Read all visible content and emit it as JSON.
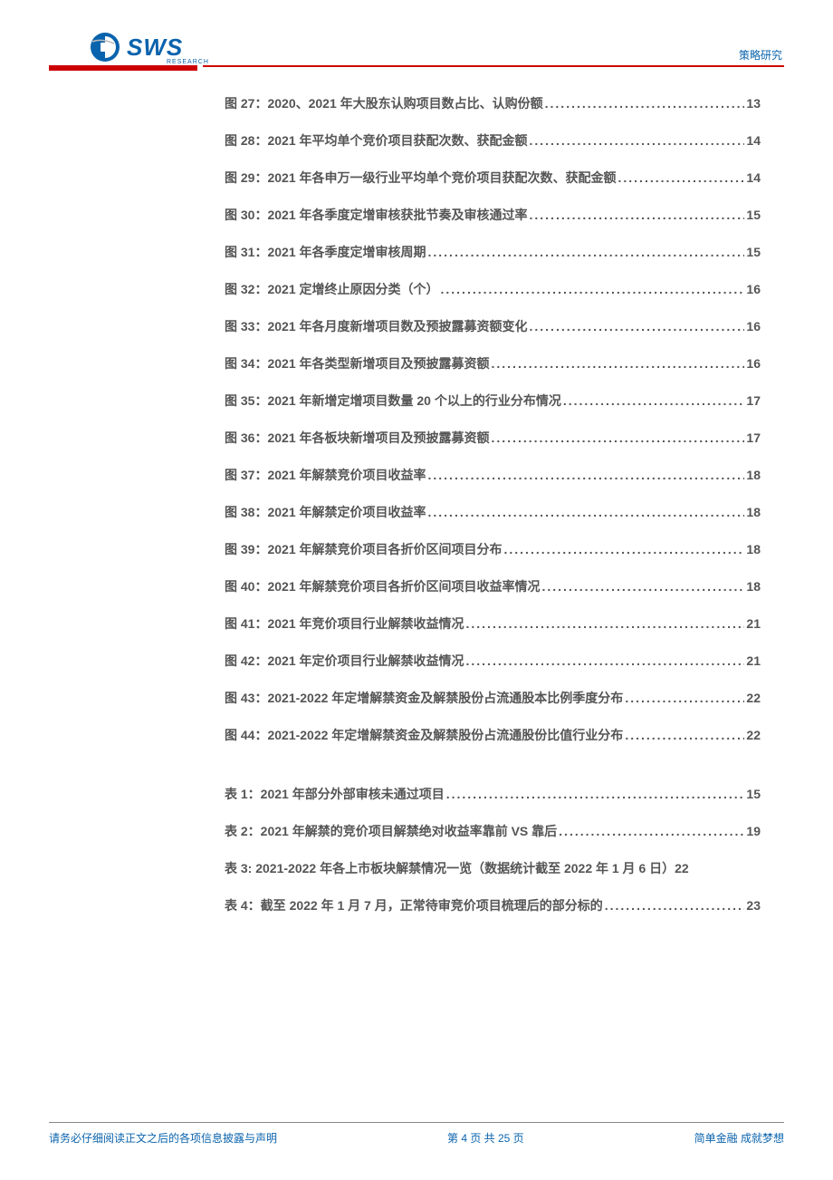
{
  "header": {
    "logo_text": "SWS",
    "logo_sub": "RESEARCH",
    "category": "策略研究"
  },
  "colors": {
    "red": "#cc0000",
    "blue": "#0a63ad",
    "text": "#555555"
  },
  "figures": [
    {
      "label": "图 27：2020、2021 年大股东认购项目数占比、认购份额",
      "page": "13"
    },
    {
      "label": "图 28：2021 年平均单个竞价项目获配次数、获配金额",
      "page": "14"
    },
    {
      "label": "图 29：2021 年各申万一级行业平均单个竞价项目获配次数、获配金额",
      "page": "14"
    },
    {
      "label": "图 30：2021 年各季度定增审核获批节奏及审核通过率",
      "page": "15"
    },
    {
      "label": "图 31：2021 年各季度定增审核周期",
      "page": "15"
    },
    {
      "label": "图 32：2021 定增终止原因分类（个）",
      "page": "16"
    },
    {
      "label": "图 33：2021 年各月度新增项目数及预披露募资额变化",
      "page": "16"
    },
    {
      "label": "图 34：2021 年各类型新增项目及预披露募资额",
      "page": "16"
    },
    {
      "label": "图 35：2021 年新增定增项目数量 20 个以上的行业分布情况",
      "page": "17"
    },
    {
      "label": "图 36：2021 年各板块新增项目及预披露募资额",
      "page": "17"
    },
    {
      "label": "图 37：2021 年解禁竞价项目收益率",
      "page": "18"
    },
    {
      "label": "图 38：2021 年解禁定价项目收益率",
      "page": "18"
    },
    {
      "label": "图 39：2021 年解禁竞价项目各折价区间项目分布",
      "page": "18"
    },
    {
      "label": "图 40：2021 年解禁竞价项目各折价区间项目收益率情况",
      "page": "18"
    },
    {
      "label": "图 41：2021 年竞价项目行业解禁收益情况",
      "page": "21"
    },
    {
      "label": "图 42：2021 年定价项目行业解禁收益情况",
      "page": "21"
    },
    {
      "label": "图 43：2021-2022 年定增解禁资金及解禁股份占流通股本比例季度分布",
      "page": "22"
    },
    {
      "label": "图 44：2021-2022 年定增解禁资金及解禁股份占流通股份比值行业分布",
      "page": "22"
    }
  ],
  "tables": [
    {
      "label": "表 1：2021 年部分外部审核未通过项目",
      "page": "15"
    },
    {
      "label": "表 2：2021 年解禁的竞价项目解禁绝对收益率靠前 VS 靠后",
      "page": "19"
    },
    {
      "label": "表 3: 2021-2022 年各上市板块解禁情况一览（数据统计截至 2022 年 1 月 6 日）",
      "page": "22",
      "nodots": true
    },
    {
      "label": "表 4：截至 2022 年 1 月 7 月，正常待审竞价项目梳理后的部分标的",
      "page": "23"
    }
  ],
  "footer": {
    "left": "请务必仔细阅读正文之后的各项信息披露与声明",
    "center": "第 4 页 共 25 页",
    "right": "简单金融 成就梦想"
  }
}
